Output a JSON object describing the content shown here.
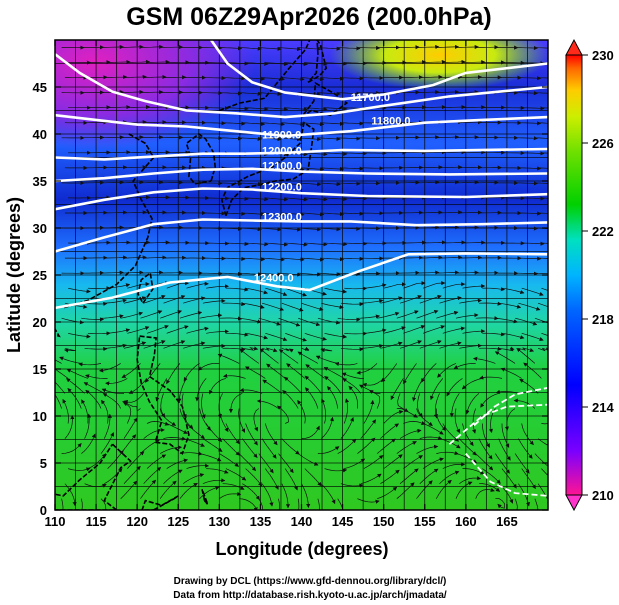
{
  "title": "GSM 06Z29Apr2026 (200.0hPa)",
  "x_axis": {
    "label": "Longitude (degrees)",
    "ticks": [
      "110",
      "115",
      "120",
      "125",
      "130",
      "135",
      "140",
      "145",
      "150",
      "155",
      "160",
      "165"
    ],
    "range": [
      110,
      170
    ]
  },
  "y_axis": {
    "label": "Latitude (degrees)",
    "ticks": [
      "0",
      "5",
      "10",
      "15",
      "20",
      "25",
      "30",
      "35",
      "40",
      "45"
    ],
    "range": [
      0,
      50
    ]
  },
  "colorbar": {
    "ticks": [
      "230",
      "226",
      "222",
      "218",
      "214",
      "210"
    ],
    "range": [
      210,
      230
    ],
    "colors": [
      "#ff1493",
      "#7a00ff",
      "#0000ff",
      "#0066ff",
      "#00b4ff",
      "#00e0c0",
      "#00d000",
      "#6fe000",
      "#ccee00",
      "#ffcc00",
      "#ff6600",
      "#ff0000"
    ]
  },
  "contours": [
    {
      "label": "11800.0",
      "lon": 148.5,
      "lat": 41.0
    },
    {
      "label": "11900.0",
      "lon": 135.2,
      "lat": 39.5
    },
    {
      "label": "12000.0",
      "lon": 135.2,
      "lat": 37.8
    },
    {
      "label": "12100.0",
      "lon": 135.2,
      "lat": 36.2
    },
    {
      "label": "12200.0",
      "lon": 135.2,
      "lat": 34.0
    },
    {
      "label": "12300.0",
      "lon": 135.2,
      "lat": 30.8
    },
    {
      "label": "12400.0",
      "lon": 134.2,
      "lat": 24.3
    },
    {
      "label": "11700.0",
      "lon": 146.0,
      "lat": 43.5
    }
  ],
  "credits": {
    "line1": "Drawing by DCL (https://www.gfd-dennou.org/library/dcl/)",
    "line2": "Data from http://database.rish.kyoto-u.ac.jp/arch/jmadata/"
  }
}
